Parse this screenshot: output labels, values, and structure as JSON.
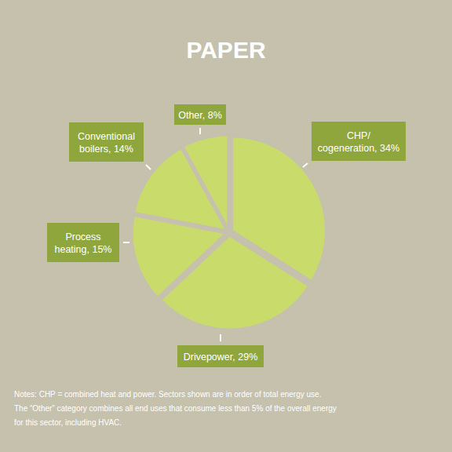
{
  "chart_data": {
    "type": "pie",
    "title": "PAPER",
    "categories": [
      "CHP/ cogeneration,",
      "Drivepower,",
      "Process heating,",
      "Conventional boilers,",
      "Other,"
    ],
    "values": [
      34,
      29,
      15,
      14,
      8
    ],
    "value_labels": [
      "34%",
      "29%",
      "15%",
      "14%",
      "8%"
    ],
    "color": "#c9dc6b",
    "data_labels": true,
    "notes": [
      "Notes: CHP = combined heat and power. Sectors shown are in order of total energy use.",
      "The “Other” category combines all end uses that consume less than 5% of the overall energy",
      "for this sector, including HVAC."
    ]
  }
}
